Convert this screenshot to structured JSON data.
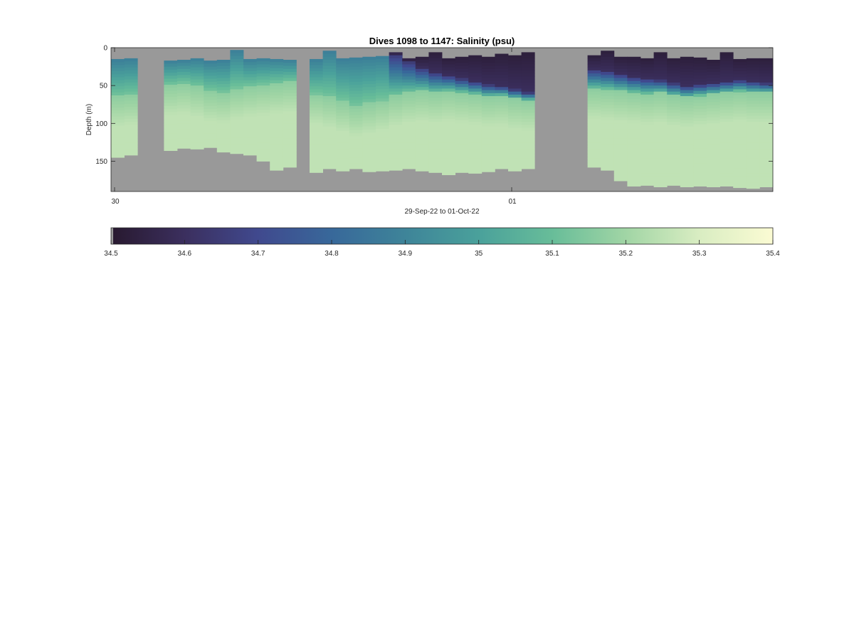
{
  "chart_data": {
    "type": "heatmap",
    "title": "Dives 1098 to 1147: Salinity (psu)",
    "xlabel": "29-Sep-22 to 01-Oct-22",
    "ylabel": "Depth (m)",
    "ylim": [
      0,
      190
    ],
    "y_reversed": true,
    "y_ticks": [
      0,
      50,
      100,
      150
    ],
    "x_ticks": [
      {
        "label": "30",
        "dive": 1098
      },
      {
        "label": "01",
        "dive": 1128
      }
    ],
    "missing_color": "#999999",
    "colormap": [
      "#28192f",
      "#3b2f5e",
      "#40498e",
      "#38689a",
      "#3e8499",
      "#4aa19b",
      "#68bd99",
      "#a1d5a5",
      "#d9edc2",
      "#fbfbd3"
    ],
    "colorbar": {
      "ticks": [
        "34.5",
        "34.6",
        "34.7",
        "34.8",
        "34.9",
        "35",
        "35.1",
        "35.2",
        "35.3",
        "35.4"
      ],
      "range": [
        34.5,
        35.4
      ]
    },
    "profiles": [
      {
        "dive": 1098,
        "top": 15,
        "bottom": 145,
        "fresh_bottom": 0,
        "halo": 65
      },
      {
        "dive": 1099,
        "top": 14,
        "bottom": 142,
        "fresh_bottom": 0,
        "halo": 63
      },
      {
        "dive": 1100,
        "bottom": 0
      },
      {
        "dive": 1101,
        "bottom": 0
      },
      {
        "dive": 1102,
        "top": 17,
        "bottom": 136,
        "fresh_bottom": 0,
        "halo": 50
      },
      {
        "dive": 1103,
        "top": 16,
        "bottom": 133,
        "fresh_bottom": 0,
        "halo": 48
      },
      {
        "dive": 1104,
        "top": 14,
        "bottom": 134,
        "fresh_bottom": 0,
        "halo": 52
      },
      {
        "dive": 1105,
        "top": 17,
        "bottom": 132,
        "fresh_bottom": 0,
        "halo": 58
      },
      {
        "dive": 1106,
        "top": 16,
        "bottom": 138,
        "fresh_bottom": 0,
        "halo": 60
      },
      {
        "dive": 1107,
        "top": 3,
        "bottom": 140,
        "fresh_bottom": 0,
        "halo": 55
      },
      {
        "dive": 1108,
        "top": 15,
        "bottom": 142,
        "fresh_bottom": 0,
        "halo": 52
      },
      {
        "dive": 1109,
        "top": 14,
        "bottom": 150,
        "fresh_bottom": 0,
        "halo": 50
      },
      {
        "dive": 1110,
        "top": 15,
        "bottom": 162,
        "fresh_bottom": 0,
        "halo": 48
      },
      {
        "dive": 1111,
        "top": 16,
        "bottom": 158,
        "fresh_bottom": 0,
        "halo": 46
      },
      {
        "dive": 1112,
        "bottom": 0
      },
      {
        "dive": 1113,
        "top": 15,
        "bottom": 165,
        "fresh_bottom": 0,
        "halo": 62
      },
      {
        "dive": 1114,
        "top": 4,
        "bottom": 160,
        "fresh_bottom": 0,
        "halo": 66
      },
      {
        "dive": 1115,
        "top": 14,
        "bottom": 163,
        "fresh_bottom": 0,
        "halo": 72
      },
      {
        "dive": 1116,
        "top": 13,
        "bottom": 160,
        "fresh_bottom": 0,
        "halo": 78
      },
      {
        "dive": 1117,
        "top": 12,
        "bottom": 164,
        "fresh_bottom": 0,
        "halo": 74
      },
      {
        "dive": 1118,
        "top": 11,
        "bottom": 163,
        "fresh_bottom": 0,
        "halo": 70
      },
      {
        "dive": 1119,
        "top": 6,
        "bottom": 162,
        "fresh_bottom": 10,
        "halo": 64
      },
      {
        "dive": 1120,
        "top": 14,
        "bottom": 160,
        "fresh_bottom": 20,
        "halo": 60
      },
      {
        "dive": 1121,
        "top": 12,
        "bottom": 163,
        "fresh_bottom": 28,
        "halo": 58
      },
      {
        "dive": 1122,
        "top": 6,
        "bottom": 165,
        "fresh_bottom": 34,
        "halo": 60
      },
      {
        "dive": 1123,
        "top": 14,
        "bottom": 168,
        "fresh_bottom": 38,
        "halo": 58
      },
      {
        "dive": 1124,
        "top": 12,
        "bottom": 165,
        "fresh_bottom": 42,
        "halo": 60
      },
      {
        "dive": 1125,
        "top": 10,
        "bottom": 166,
        "fresh_bottom": 46,
        "halo": 62
      },
      {
        "dive": 1126,
        "top": 12,
        "bottom": 164,
        "fresh_bottom": 50,
        "halo": 65
      },
      {
        "dive": 1127,
        "top": 8,
        "bottom": 160,
        "fresh_bottom": 52,
        "halo": 64
      },
      {
        "dive": 1128,
        "top": 10,
        "bottom": 163,
        "fresh_bottom": 56,
        "halo": 68
      },
      {
        "dive": 1129,
        "top": 6,
        "bottom": 160,
        "fresh_bottom": 60,
        "halo": 70
      },
      {
        "dive": 1130,
        "bottom": 0
      },
      {
        "dive": 1131,
        "bottom": 0
      },
      {
        "dive": 1132,
        "bottom": 0
      },
      {
        "dive": 1133,
        "bottom": 0
      },
      {
        "dive": 1134,
        "top": 10,
        "bottom": 158,
        "fresh_bottom": 30,
        "halo": 55
      },
      {
        "dive": 1135,
        "top": 4,
        "bottom": 162,
        "fresh_bottom": 32,
        "halo": 56
      },
      {
        "dive": 1136,
        "top": 12,
        "bottom": 176,
        "fresh_bottom": 36,
        "halo": 58
      },
      {
        "dive": 1137,
        "top": 12,
        "bottom": 183,
        "fresh_bottom": 40,
        "halo": 60
      },
      {
        "dive": 1138,
        "top": 14,
        "bottom": 182,
        "fresh_bottom": 42,
        "halo": 62
      },
      {
        "dive": 1139,
        "top": 6,
        "bottom": 184,
        "fresh_bottom": 44,
        "halo": 60
      },
      {
        "dive": 1140,
        "top": 14,
        "bottom": 182,
        "fresh_bottom": 48,
        "halo": 64
      },
      {
        "dive": 1141,
        "top": 12,
        "bottom": 184,
        "fresh_bottom": 52,
        "halo": 66
      },
      {
        "dive": 1142,
        "top": 13,
        "bottom": 183,
        "fresh_bottom": 50,
        "halo": 64
      },
      {
        "dive": 1143,
        "top": 16,
        "bottom": 184,
        "fresh_bottom": 48,
        "halo": 62
      },
      {
        "dive": 1144,
        "top": 6,
        "bottom": 183,
        "fresh_bottom": 46,
        "halo": 60
      },
      {
        "dive": 1145,
        "top": 15,
        "bottom": 185,
        "fresh_bottom": 44,
        "halo": 58
      },
      {
        "dive": 1146,
        "top": 14,
        "bottom": 186,
        "fresh_bottom": 46,
        "halo": 60
      },
      {
        "dive": 1147,
        "top": 14,
        "bottom": 184,
        "fresh_bottom": 48,
        "halo": 60
      }
    ],
    "grid": false,
    "legend": "colorbar-bottom"
  }
}
